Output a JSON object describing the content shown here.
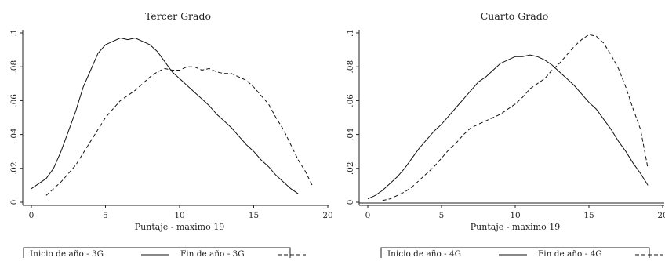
{
  "chart_data": [
    {
      "type": "line",
      "title": "Tercer Grado",
      "xlabel": "Puntaje - maximo 19",
      "ylabel": "",
      "xlim": [
        0,
        20
      ],
      "ylim": [
        0,
        0.1
      ],
      "x_ticks": [
        "0",
        "5",
        "10",
        "15",
        "20"
      ],
      "y_ticks": [
        "0",
        ".02",
        ".04",
        ".06",
        ".08",
        ".1"
      ],
      "legend_position": "bottom",
      "series": [
        {
          "name": "Inicio de año - 3G",
          "style": "solid",
          "x": [
            0,
            0.5,
            1,
            1.5,
            2,
            2.5,
            3,
            3.5,
            4,
            4.5,
            5,
            5.5,
            6,
            6.5,
            7,
            7.5,
            8,
            8.5,
            9,
            9.5,
            10,
            10.5,
            11,
            11.5,
            12,
            12.5,
            13,
            13.5,
            14,
            14.5,
            15,
            15.5,
            16,
            16.5,
            17,
            17.5,
            18
          ],
          "y": [
            0.008,
            0.011,
            0.014,
            0.02,
            0.03,
            0.042,
            0.054,
            0.068,
            0.078,
            0.088,
            0.093,
            0.095,
            0.097,
            0.096,
            0.097,
            0.095,
            0.093,
            0.089,
            0.083,
            0.077,
            0.073,
            0.069,
            0.065,
            0.061,
            0.057,
            0.052,
            0.048,
            0.044,
            0.039,
            0.034,
            0.03,
            0.025,
            0.021,
            0.016,
            0.012,
            0.008,
            0.005
          ]
        },
        {
          "name": "Fin de año - 3G",
          "style": "dashed",
          "x": [
            1,
            1.5,
            2,
            2.5,
            3,
            3.5,
            4,
            4.5,
            5,
            5.5,
            6,
            6.5,
            7,
            7.5,
            8,
            8.5,
            9,
            9.5,
            10,
            10.5,
            11,
            11.5,
            12,
            12.5,
            13,
            13.5,
            14,
            14.5,
            15,
            15.5,
            16,
            16.5,
            17,
            17.5,
            18,
            18.5,
            19
          ],
          "y": [
            0.004,
            0.008,
            0.012,
            0.017,
            0.022,
            0.029,
            0.036,
            0.043,
            0.05,
            0.055,
            0.06,
            0.063,
            0.066,
            0.07,
            0.074,
            0.077,
            0.079,
            0.078,
            0.078,
            0.08,
            0.08,
            0.078,
            0.079,
            0.077,
            0.076,
            0.076,
            0.074,
            0.072,
            0.068,
            0.063,
            0.058,
            0.05,
            0.043,
            0.034,
            0.025,
            0.018,
            0.009
          ]
        }
      ]
    },
    {
      "type": "line",
      "title": "Cuarto Grado",
      "xlabel": "Puntaje - maximo 19",
      "ylabel": "",
      "xlim": [
        0,
        20
      ],
      "ylim": [
        0,
        0.1
      ],
      "x_ticks": [
        "0",
        "5",
        "10",
        "15",
        "20"
      ],
      "y_ticks": [
        "0",
        ".02",
        ".04",
        ".06",
        ".08",
        ".1"
      ],
      "legend_position": "bottom",
      "series": [
        {
          "name": "Inicio de año - 4G",
          "style": "solid",
          "x": [
            0,
            0.5,
            1,
            1.5,
            2,
            2.5,
            3,
            3.5,
            4,
            4.5,
            5,
            5.5,
            6,
            6.5,
            7,
            7.5,
            8,
            8.5,
            9,
            9.5,
            10,
            10.5,
            11,
            11.5,
            12,
            12.5,
            13,
            13.5,
            14,
            14.5,
            15,
            15.5,
            16,
            16.5,
            17,
            17.5,
            18,
            18.5,
            19
          ],
          "y": [
            0.002,
            0.004,
            0.007,
            0.011,
            0.015,
            0.02,
            0.026,
            0.032,
            0.037,
            0.042,
            0.046,
            0.051,
            0.056,
            0.061,
            0.066,
            0.071,
            0.074,
            0.078,
            0.082,
            0.084,
            0.086,
            0.086,
            0.087,
            0.086,
            0.084,
            0.081,
            0.077,
            0.073,
            0.069,
            0.064,
            0.059,
            0.055,
            0.049,
            0.043,
            0.036,
            0.03,
            0.023,
            0.017,
            0.01
          ]
        },
        {
          "name": "Fin de año - 4G",
          "style": "dashed",
          "x": [
            1,
            1.5,
            2,
            2.5,
            3,
            3.5,
            4,
            4.5,
            5,
            5.5,
            6,
            6.5,
            7,
            7.5,
            8,
            8.5,
            9,
            9.5,
            10,
            10.5,
            11,
            11.5,
            12,
            12.5,
            13,
            13.5,
            14,
            14.5,
            15,
            15.5,
            16,
            16.5,
            17,
            17.5,
            18,
            18.5,
            19
          ],
          "y": [
            0.001,
            0.002,
            0.004,
            0.006,
            0.009,
            0.013,
            0.017,
            0.021,
            0.026,
            0.031,
            0.035,
            0.04,
            0.044,
            0.046,
            0.048,
            0.05,
            0.052,
            0.055,
            0.058,
            0.062,
            0.067,
            0.07,
            0.073,
            0.078,
            0.082,
            0.087,
            0.092,
            0.096,
            0.099,
            0.098,
            0.094,
            0.087,
            0.079,
            0.068,
            0.055,
            0.043,
            0.02
          ]
        }
      ]
    }
  ]
}
